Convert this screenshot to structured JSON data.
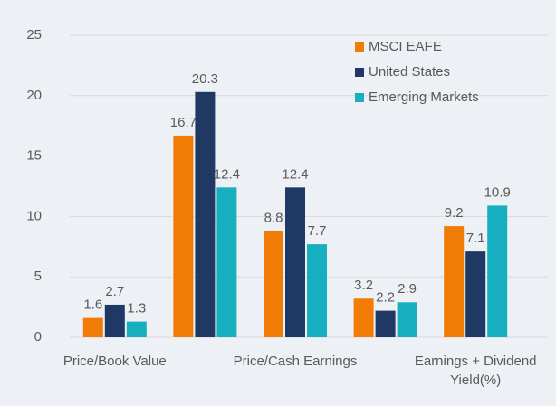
{
  "chart_data": {
    "type": "bar",
    "categories": [
      "Price/Book Value",
      null,
      "Price/Cash Earnings",
      null,
      "Earnings + Dividend Yield(%)"
    ],
    "series": [
      {
        "name": "MSCI EAFE",
        "color": "#f07b05",
        "values": [
          1.6,
          16.7,
          8.8,
          3.2,
          9.2
        ]
      },
      {
        "name": "United States",
        "color": "#1f3864",
        "values": [
          2.7,
          20.3,
          12.4,
          2.2,
          7.1
        ]
      },
      {
        "name": "Emerging Markets",
        "color": "#17aebf",
        "values": [
          1.3,
          12.4,
          7.7,
          2.9,
          10.9
        ]
      }
    ],
    "ylim": [
      0,
      25
    ],
    "yticks": [
      0,
      5,
      10,
      15,
      20,
      25
    ],
    "grid": true,
    "legend": "top-right"
  }
}
